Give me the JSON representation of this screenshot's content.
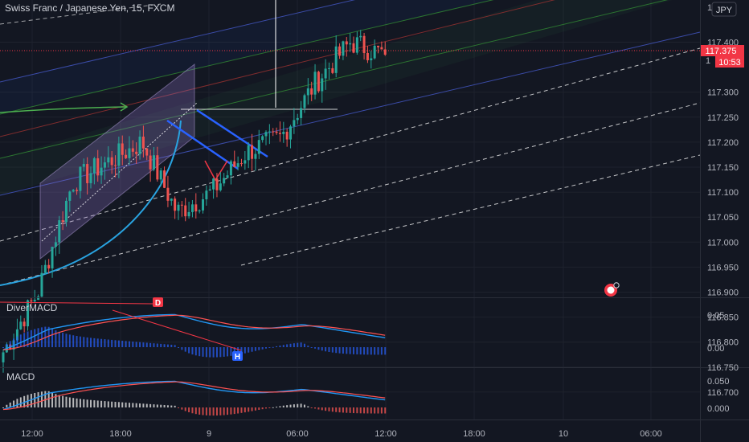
{
  "header": {
    "title": "Swiss Franc / Japanese Yen, 15, FXCM",
    "currency_button": "JPY"
  },
  "price_scale": {
    "ticks": [
      "117.400",
      "117.300",
      "117.250",
      "117.200",
      "117.150",
      "117.100",
      "117.050",
      "117.000",
      "116.950",
      "116.900",
      "116.850",
      "116.800",
      "116.750",
      "116.700"
    ],
    "top_tick_partial": "1",
    "last_price": "117.375",
    "countdown": "10:53",
    "countdown_prefix": "1",
    "last_price_color": "#f23645"
  },
  "time_axis": {
    "labels": [
      "12:00",
      "18:00",
      "9",
      "06:00",
      "12:00",
      "18:00",
      "10",
      "06:00"
    ]
  },
  "indicators": {
    "divermacd": {
      "name": "DiverMACD",
      "ticks": [
        "0.05",
        "0.00"
      ],
      "markers": {
        "divergence": "D",
        "hidden": "H"
      }
    },
    "macd": {
      "name": "MACD",
      "ticks": [
        "0.050",
        "0.000"
      ]
    }
  },
  "colors": {
    "background": "#131722",
    "up": "#26a69a",
    "down": "#ef5350",
    "macd_line": "#2196f3",
    "signal_line": "#ff5252"
  },
  "chart_data": [
    {
      "type": "candlestick",
      "title": "Swiss Franc / Japanese Yen, 15, FXCM",
      "ylim": [
        116.68,
        117.48
      ],
      "x_labels": [
        "12:00",
        "18:00",
        "9",
        "06:00",
        "12:00",
        "18:00",
        "10",
        "06:00"
      ],
      "ohlc_approx": [
        {
          "t": "start",
          "close": 116.78
        },
        {
          "t": "12:00",
          "close": 116.9
        },
        {
          "t": "~15:00",
          "close": 117.12
        },
        {
          "t": "18:00",
          "close": 117.16
        },
        {
          "t": "~21:00",
          "close": 117.2
        },
        {
          "t": "~23:00",
          "close": 117.06
        },
        {
          "t": "9 00:00",
          "close": 117.1
        },
        {
          "t": "~03:00",
          "close": 117.18
        },
        {
          "t": "06:00",
          "close": 117.21
        },
        {
          "t": "~09:00",
          "close": 117.32
        },
        {
          "t": "~10:00",
          "close": 117.4
        },
        {
          "t": "12:00",
          "close": 117.375
        }
      ],
      "last": 117.375
    },
    {
      "type": "line",
      "name": "DiverMACD",
      "ylim": [
        -0.02,
        0.07
      ],
      "ticks": [
        0.05,
        0.0
      ]
    },
    {
      "type": "line",
      "name": "MACD",
      "ylim": [
        -0.025,
        0.065
      ],
      "ticks": [
        0.05,
        0.0
      ]
    }
  ]
}
